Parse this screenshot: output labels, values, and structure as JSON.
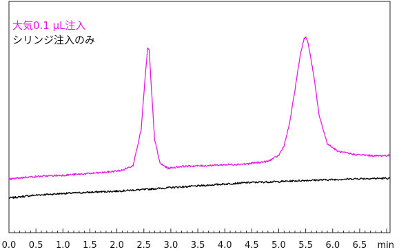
{
  "chart_data": {
    "type": "line",
    "xlabel": "min",
    "xlim": [
      0.0,
      7.1
    ],
    "ylim": [
      0,
      100
    ],
    "x_ticks": [
      "0.0",
      "0.5",
      "1.0",
      "1.5",
      "2.0",
      "2.5",
      "3.0",
      "3.5",
      "4.0",
      "4.5",
      "5.0",
      "5.5",
      "6.0",
      "6.5"
    ],
    "grid": false,
    "legend_position": "top-left",
    "series": [
      {
        "name": "大気0.1 μL注入",
        "color": "#e619e6",
        "x": [
          0.0,
          0.3,
          0.6,
          1.0,
          1.4,
          1.8,
          2.1,
          2.3,
          2.45,
          2.52,
          2.57,
          2.6,
          2.63,
          2.7,
          2.8,
          2.95,
          3.2,
          3.6,
          4.0,
          4.4,
          4.8,
          5.0,
          5.1,
          5.2,
          5.3,
          5.4,
          5.47,
          5.5,
          5.55,
          5.65,
          5.75,
          5.9,
          6.1,
          6.4,
          6.8,
          7.1
        ],
        "y": [
          20.0,
          21.0,
          21.5,
          22.0,
          22.7,
          23.5,
          24.5,
          27,
          45,
          70,
          86,
          85,
          70,
          40,
          28,
          25.5,
          26.5,
          26.8,
          27.3,
          27.7,
          29,
          32,
          37,
          48,
          65,
          83,
          91,
          92,
          88,
          72,
          52,
          38,
          34,
          32.5,
          31.8,
          32.0
        ]
      },
      {
        "name": "シリンジ注入のみ",
        "color": "#000000",
        "x": [
          0.0,
          0.5,
          1.0,
          1.5,
          2.0,
          2.5,
          3.0,
          3.5,
          4.0,
          4.5,
          5.0,
          5.5,
          6.0,
          6.5,
          7.1
        ],
        "y": [
          10.5,
          12.0,
          12.8,
          13.4,
          14.0,
          14.8,
          15.8,
          16.6,
          17.6,
          18.4,
          18.8,
          19.4,
          19.8,
          20.3,
          20.5
        ]
      }
    ]
  },
  "legend": {
    "item1": "大気0.1 μL注入",
    "item2": "シリンジ注入のみ"
  }
}
